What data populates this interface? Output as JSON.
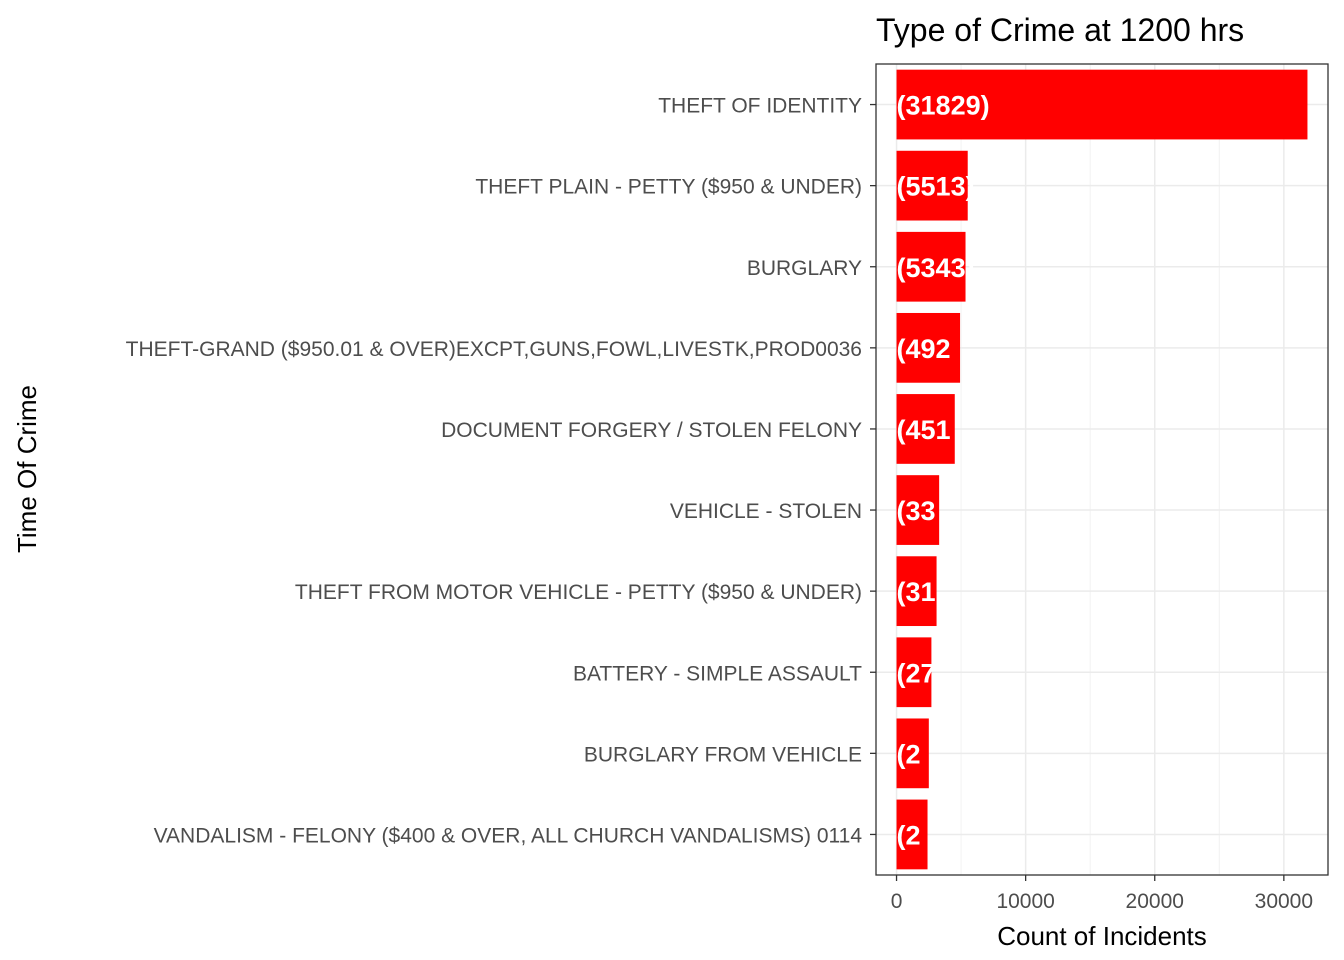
{
  "chart_data": {
    "type": "bar",
    "orientation": "horizontal",
    "title": "Type of Crime at 1200 hrs",
    "xlabel": "Count of Incidents",
    "ylabel": "Time Of Crime",
    "categories": [
      "THEFT OF IDENTITY",
      "THEFT PLAIN - PETTY ($950 & UNDER)",
      "BURGLARY",
      "THEFT-GRAND ($950.01 & OVER)EXCPT,GUNS,FOWL,LIVESTK,PROD0036",
      "DOCUMENT FORGERY / STOLEN FELONY",
      "VEHICLE - STOLEN",
      "THEFT FROM MOTOR VEHICLE - PETTY ($950 & UNDER)",
      "BATTERY - SIMPLE ASSAULT",
      "BURGLARY FROM VEHICLE",
      "VANDALISM - FELONY ($400 & OVER, ALL CHURCH VANDALISMS) 0114"
    ],
    "values": [
      31829,
      5513,
      5343,
      4920,
      4510,
      3300,
      3100,
      2700,
      2500,
      2400
    ],
    "value_labels": [
      "(31829)",
      "(5513)",
      "(5343)",
      "(492",
      "(451",
      "(33",
      "(31",
      "(27",
      "(2",
      "(2"
    ],
    "xticks": [
      0,
      10000,
      20000,
      30000
    ],
    "xtick_labels": [
      "0",
      "10000",
      "20000",
      "30000"
    ],
    "xlim": [
      -1591,
      33420
    ],
    "bar_color": "#ff0000",
    "grid": true,
    "legend": "none"
  }
}
